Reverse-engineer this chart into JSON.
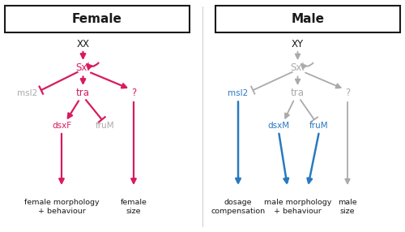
{
  "title_female": "Female",
  "title_male": "Male",
  "pink": "#D81B60",
  "blue": "#2979C1",
  "gray": "#AAAAAA",
  "black": "#1A1A1A",
  "bg": "#FFFFFF",
  "xlim": [
    0,
    10
  ],
  "ylim": [
    0,
    5.72
  ]
}
